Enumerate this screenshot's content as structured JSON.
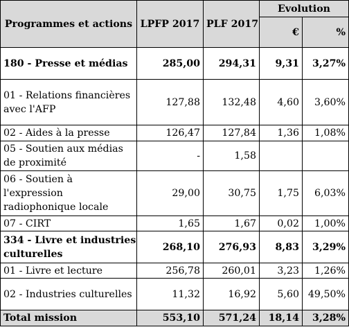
{
  "header": {
    "col_programmes": "Programmes et actions",
    "col_lpfp": "LPFP 2017",
    "col_plf": "PLF 2017",
    "col_evolution": "Evolution",
    "sub_eur": "€",
    "sub_pct": "%"
  },
  "rows": [
    {
      "label": "180 - Presse et médias",
      "lpfp": "285,00",
      "plf": "294,31",
      "eur": "9,31",
      "pct": "3,27%"
    },
    {
      "label_l1": "01 - Relations financières",
      "label_l2": "avec l'AFP",
      "lpfp": "127,88",
      "plf": "132,48",
      "eur": "4,60",
      "pct": "3,60%"
    },
    {
      "label": "02 - Aides à la presse",
      "lpfp": "126,47",
      "plf": "127,84",
      "eur": "1,36",
      "pct": "1,08%"
    },
    {
      "label_l1": "05 - Soutien aux médias",
      "label_l2": "de proximité",
      "lpfp": "-",
      "plf": "1,58",
      "eur": "",
      "pct": ""
    },
    {
      "label_l1": "06 - Soutien à",
      "label_l2": "l'expression",
      "label_l3": "radiophonique locale",
      "lpfp": "29,00",
      "plf": "30,75",
      "eur": "1,75",
      "pct": "6,03%"
    },
    {
      "label": "07 - CIRT",
      "lpfp": "1,65",
      "plf": "1,67",
      "eur": "0,02",
      "pct": "1,00%"
    },
    {
      "label_l1": "334 - Livre et industries",
      "label_l2": "culturelles",
      "lpfp": "268,10",
      "plf": "276,93",
      "eur": "8,83",
      "pct": "3,29%"
    },
    {
      "label": "01 - Livre et lecture",
      "lpfp": "256,78",
      "plf": "260,01",
      "eur": "3,23",
      "pct": "1,26%"
    },
    {
      "label": "02 - Industries culturelles",
      "lpfp": "11,32",
      "plf": "16,92",
      "eur": "5,60",
      "pct": "49,50%"
    }
  ],
  "total": {
    "label": "Total mission",
    "lpfp": "553,10",
    "plf": "571,24",
    "eur": "18,14",
    "pct": "3,28%"
  }
}
